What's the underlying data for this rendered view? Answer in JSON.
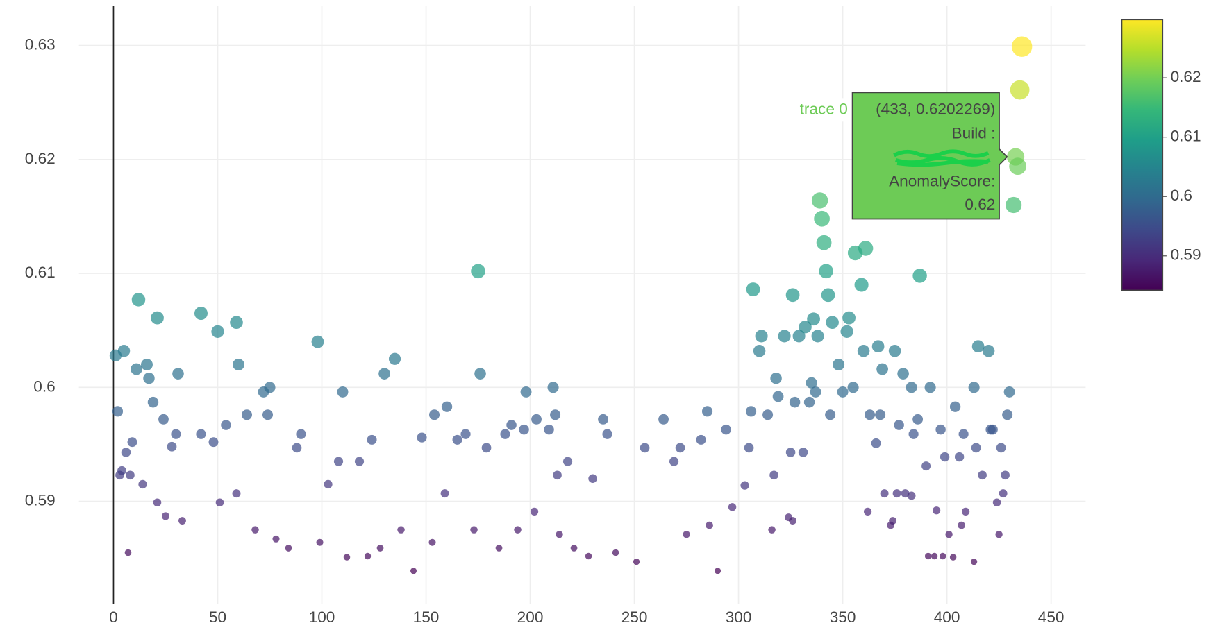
{
  "chart_data": {
    "type": "scatter",
    "x": [
      1,
      2,
      5,
      7,
      12,
      11,
      16,
      17,
      21,
      19,
      24,
      31,
      30,
      42,
      50,
      59,
      60,
      72,
      75,
      98,
      110,
      130,
      135,
      175,
      176,
      198,
      211,
      307,
      311,
      310,
      326,
      322,
      329,
      332,
      336,
      338,
      339,
      340,
      341,
      342,
      343,
      345,
      348,
      356,
      361,
      359,
      353,
      352,
      360,
      367,
      375,
      387,
      379,
      383,
      392,
      415,
      420,
      432,
      433,
      434,
      435,
      436,
      430,
      429,
      413,
      428,
      426,
      427,
      424,
      425,
      403,
      413,
      401,
      404,
      408,
      397,
      390,
      391,
      395,
      398,
      380,
      373,
      362,
      355,
      350,
      344,
      331,
      325,
      324,
      326,
      316,
      317,
      303,
      297,
      290,
      286,
      275,
      272,
      264,
      251,
      241,
      228,
      221,
      214,
      202,
      194,
      185,
      173,
      159,
      153,
      144,
      138,
      128,
      122,
      112,
      99,
      84,
      78,
      68,
      59,
      51,
      33,
      25,
      21,
      14,
      3,
      4,
      8,
      9,
      6,
      28,
      42,
      48,
      54,
      64,
      74,
      90,
      88,
      103,
      108,
      118,
      124,
      148,
      154,
      160,
      165,
      169,
      179,
      188,
      191,
      197,
      203,
      209,
      212,
      213,
      218,
      235,
      237,
      230,
      255,
      269,
      282,
      285,
      294,
      305,
      306,
      314,
      318,
      319,
      327,
      334,
      335,
      337,
      369,
      368,
      363,
      366,
      377,
      384,
      386,
      414,
      417,
      421,
      422,
      376,
      370,
      374,
      383,
      399,
      406,
      409,
      407,
      394
    ],
    "y": [
      0.6028,
      0.5979,
      0.6032,
      0.5855,
      0.6077,
      0.6016,
      0.602,
      0.6008,
      0.6061,
      0.5987,
      0.5972,
      0.6012,
      0.5959,
      0.6065,
      0.6049,
      0.6057,
      0.602,
      0.5996,
      0.6,
      0.604,
      0.5996,
      0.6012,
      0.6025,
      0.6102,
      0.6012,
      0.5996,
      0.6,
      0.6086,
      0.6045,
      0.6032,
      0.6081,
      0.6045,
      0.6045,
      0.6053,
      0.606,
      0.6045,
      0.6164,
      0.6148,
      0.6127,
      0.6102,
      0.6081,
      0.6057,
      0.602,
      0.6118,
      0.6122,
      0.609,
      0.6061,
      0.6049,
      0.6032,
      0.6036,
      0.6032,
      0.6098,
      0.6012,
      0.6,
      0.6,
      0.6036,
      0.6032,
      0.616,
      0.6202269,
      0.6194,
      0.6261,
      0.6299,
      0.5996,
      0.5976,
      0.6,
      0.5923,
      0.5947,
      0.5907,
      0.5899,
      0.5871,
      0.5851,
      0.5847,
      0.5871,
      0.5983,
      0.5959,
      0.5963,
      0.5931,
      0.5852,
      0.5892,
      0.5852,
      0.5907,
      0.5879,
      0.5891,
      0.6,
      0.5996,
      0.5976,
      0.5943,
      0.5943,
      0.5886,
      0.5883,
      0.5875,
      0.5923,
      0.5914,
      0.5895,
      0.5839,
      0.5879,
      0.5871,
      0.5947,
      0.5972,
      0.5847,
      0.5855,
      0.5852,
      0.5859,
      0.5871,
      0.5891,
      0.5875,
      0.5859,
      0.5875,
      0.5907,
      0.5864,
      0.5839,
      0.5875,
      0.5859,
      0.5852,
      0.5851,
      0.5864,
      0.5859,
      0.5867,
      0.5875,
      0.5907,
      0.5899,
      0.5883,
      0.5887,
      0.5899,
      0.5915,
      0.5923,
      0.5927,
      0.5923,
      0.5952,
      0.5943,
      0.5948,
      0.5959,
      0.5952,
      0.5967,
      0.5976,
      0.5976,
      0.5959,
      0.5947,
      0.5915,
      0.5935,
      0.5935,
      0.5954,
      0.5956,
      0.5976,
      0.5983,
      0.5954,
      0.5959,
      0.5947,
      0.5959,
      0.5967,
      0.5963,
      0.5972,
      0.5963,
      0.5976,
      0.5923,
      0.5935,
      0.5972,
      0.5959,
      0.592,
      0.5947,
      0.5935,
      0.5954,
      0.5979,
      0.5963,
      0.5947,
      0.5979,
      0.5976,
      0.6008,
      0.5992,
      0.5987,
      0.5987,
      0.6004,
      0.5996,
      0.6016,
      0.5976,
      0.5976,
      0.5951,
      0.5967,
      0.5959,
      0.5972,
      0.5947,
      0.5923,
      0.5963,
      0.5963,
      0.5907,
      0.5907,
      0.5883,
      0.5905,
      0.5939,
      0.5939,
      0.5891,
      0.5879,
      0.5852
    ],
    "xlim": [
      -16.6,
      466.6
    ],
    "ylim": [
      0.58098,
      0.63344
    ],
    "xticks": [
      0,
      50,
      100,
      150,
      200,
      250,
      300,
      350,
      400,
      450
    ],
    "yticks": [
      0.59,
      0.6,
      0.61,
      0.62,
      0.63
    ],
    "grid": true,
    "zeroline_x": true,
    "colorscale": "Viridis",
    "clim": [
      0.5842,
      0.6298
    ],
    "colorbar_ticks": [
      0.59,
      0.6,
      0.61,
      0.62
    ],
    "tooltip": {
      "trace": "trace 0",
      "point": "(433, 0.6202269)",
      "lines": [
        "Build :",
        "AnomalyScore:",
        "0.62"
      ],
      "color": "#6dcb56"
    }
  }
}
